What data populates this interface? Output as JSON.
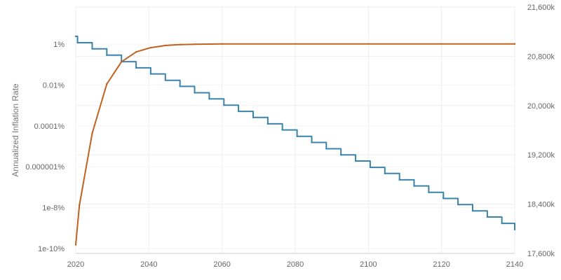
{
  "chart_data": {
    "type": "line",
    "title": "",
    "xlabel": "",
    "ylabel": "Annualized Inflation Rate",
    "y2label": "",
    "xlim": [
      2020,
      2140
    ],
    "ylim_log10": [
      -10,
      1
    ],
    "y2lim": [
      17600,
      21600
    ],
    "x_ticks": [
      "2020",
      "2040",
      "2060",
      "2080",
      "2100",
      "2120",
      "2140"
    ],
    "x_tick_values": [
      2020,
      2040,
      2060,
      2080,
      2100,
      2120,
      2140
    ],
    "y_ticks": [
      "1%",
      "0.01%",
      "0.0001%",
      "0.000001%",
      "1e-8%",
      "1e-10%"
    ],
    "y_tick_values_log10": [
      0,
      -2,
      -4,
      -6,
      -8,
      -10
    ],
    "y2_ticks": [
      "21,600k",
      "20,800k",
      "20,000k",
      "19,200k",
      "18,400k",
      "17,600k"
    ],
    "y2_tick_values": [
      21600,
      20800,
      20000,
      19200,
      18400,
      17600
    ],
    "grid": true,
    "series": [
      {
        "axis": "y_left_log",
        "step": true,
        "color": "#3a84ab",
        "points": [
          {
            "x": 2020.0,
            "y": 0.38
          },
          {
            "x": 2020.5,
            "y": 0.07
          },
          {
            "x": 2024.5,
            "y": -0.23
          },
          {
            "x": 2028.5,
            "y": -0.54
          },
          {
            "x": 2032.5,
            "y": -0.86
          },
          {
            "x": 2036.5,
            "y": -1.16
          },
          {
            "x": 2040.5,
            "y": -1.46
          },
          {
            "x": 2044.5,
            "y": -1.77
          },
          {
            "x": 2048.5,
            "y": -2.07
          },
          {
            "x": 2052.5,
            "y": -2.38
          },
          {
            "x": 2056.5,
            "y": -2.68
          },
          {
            "x": 2060.5,
            "y": -2.99
          },
          {
            "x": 2064.5,
            "y": -3.29
          },
          {
            "x": 2068.5,
            "y": -3.59
          },
          {
            "x": 2072.5,
            "y": -3.9
          },
          {
            "x": 2076.5,
            "y": -4.2
          },
          {
            "x": 2080.5,
            "y": -4.51
          },
          {
            "x": 2084.5,
            "y": -4.81
          },
          {
            "x": 2088.5,
            "y": -5.12
          },
          {
            "x": 2092.5,
            "y": -5.42
          },
          {
            "x": 2096.5,
            "y": -5.72
          },
          {
            "x": 2100.5,
            "y": -6.03
          },
          {
            "x": 2104.5,
            "y": -6.33
          },
          {
            "x": 2108.5,
            "y": -6.64
          },
          {
            "x": 2112.5,
            "y": -6.94
          },
          {
            "x": 2116.5,
            "y": -7.25
          },
          {
            "x": 2120.5,
            "y": -7.55
          },
          {
            "x": 2124.5,
            "y": -7.85
          },
          {
            "x": 2128.5,
            "y": -8.16
          },
          {
            "x": 2132.5,
            "y": -8.46
          },
          {
            "x": 2136.5,
            "y": -8.77
          },
          {
            "x": 2140.0,
            "y": -9.07
          }
        ]
      },
      {
        "axis": "y_right",
        "step": false,
        "color": "#c0621f",
        "points": [
          {
            "x": 2020.0,
            "y": 17740
          },
          {
            "x": 2021.0,
            "y": 18380
          },
          {
            "x": 2024.5,
            "y": 19550
          },
          {
            "x": 2028.5,
            "y": 20350
          },
          {
            "x": 2032.5,
            "y": 20710
          },
          {
            "x": 2036.5,
            "y": 20870
          },
          {
            "x": 2040.5,
            "y": 20940
          },
          {
            "x": 2044.5,
            "y": 20975
          },
          {
            "x": 2048.5,
            "y": 20990
          },
          {
            "x": 2052.5,
            "y": 20996
          },
          {
            "x": 2060.0,
            "y": 21000
          },
          {
            "x": 2140.0,
            "y": 21000
          }
        ]
      }
    ]
  }
}
